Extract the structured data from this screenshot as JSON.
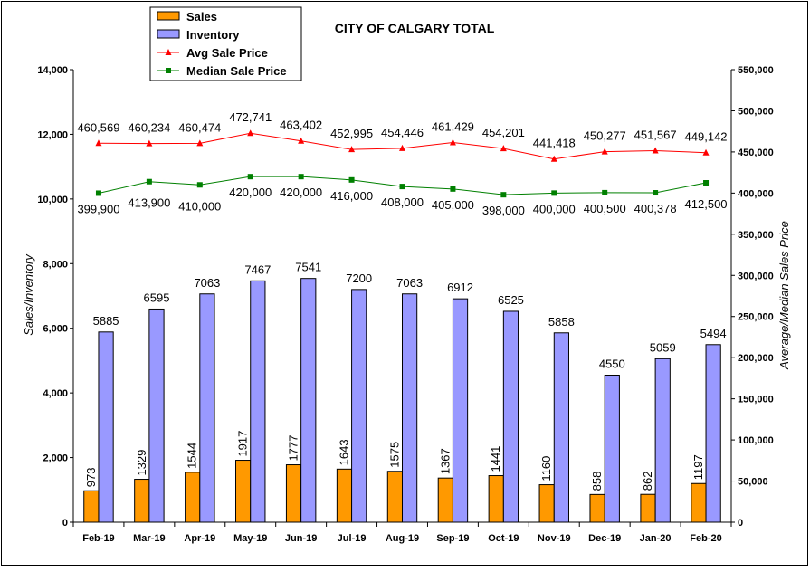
{
  "chart_data": {
    "type": "bar",
    "title": "CITY OF CALGARY TOTAL",
    "categories": [
      "Feb-19",
      "Mar-19",
      "Apr-19",
      "May-19",
      "Jun-19",
      "Jul-19",
      "Aug-19",
      "Sep-19",
      "Oct-19",
      "Nov-19",
      "Dec-19",
      "Jan-20",
      "Feb-20"
    ],
    "ylabel_left": "Sales/Inventory",
    "ylabel_right": "Average/Median Sales Price",
    "ylim_left": [
      0,
      14000
    ],
    "ylim_right": [
      0,
      550000
    ],
    "yticks_left": [
      "0",
      "2,000",
      "4,000",
      "6,000",
      "8,000",
      "10,000",
      "12,000",
      "14,000"
    ],
    "yticks_right": [
      "0",
      "50,000",
      "100,000",
      "150,000",
      "200,000",
      "250,000",
      "300,000",
      "350,000",
      "400,000",
      "450,000",
      "500,000",
      "550,000"
    ],
    "legend_position": "top-left",
    "grid": false,
    "series": [
      {
        "name": "Sales",
        "kind": "bar",
        "axis": "left",
        "color": "#ff9900",
        "values": [
          973,
          1329,
          1544,
          1917,
          1777,
          1643,
          1575,
          1367,
          1441,
          1160,
          858,
          862,
          1197
        ],
        "labels": [
          "973",
          "1329",
          "1544",
          "1917",
          "1777",
          "1643",
          "1575",
          "1367",
          "1441",
          "1160",
          "858",
          "862",
          "1197"
        ]
      },
      {
        "name": "Inventory",
        "kind": "bar",
        "axis": "left",
        "color": "#9999ff",
        "values": [
          5885,
          6595,
          7063,
          7467,
          7541,
          7200,
          7063,
          6912,
          6525,
          5858,
          4550,
          5059,
          5494
        ],
        "labels": [
          "5885",
          "6595",
          "7063",
          "7467",
          "7541",
          "7200",
          "7063",
          "6912",
          "6525",
          "5858",
          "4550",
          "5059",
          "5494"
        ]
      },
      {
        "name": "Avg Sale Price",
        "kind": "line",
        "axis": "right",
        "color": "#ff0000",
        "marker": "triangle",
        "values": [
          460569,
          460234,
          460474,
          472741,
          463402,
          452995,
          454446,
          461429,
          454201,
          441418,
          450277,
          451567,
          449142
        ],
        "labels": [
          "460,569",
          "460,234",
          "460,474",
          "472,741",
          "463,402",
          "452,995",
          "454,446",
          "461,429",
          "454,201",
          "441,418",
          "450,277",
          "451,567",
          "449,142"
        ]
      },
      {
        "name": "Median Sale Price",
        "kind": "line",
        "axis": "right",
        "color": "#008000",
        "marker": "square",
        "values": [
          399900,
          413900,
          410000,
          420000,
          420000,
          416000,
          408000,
          405000,
          398000,
          400000,
          400500,
          400378,
          412500
        ],
        "labels": [
          "399,900",
          "413,900",
          "410,000",
          "420,000",
          "420,000",
          "416,000",
          "408,000",
          "405,000",
          "398,000",
          "400,000",
          "400,500",
          "400,378",
          "412,500"
        ]
      }
    ]
  }
}
